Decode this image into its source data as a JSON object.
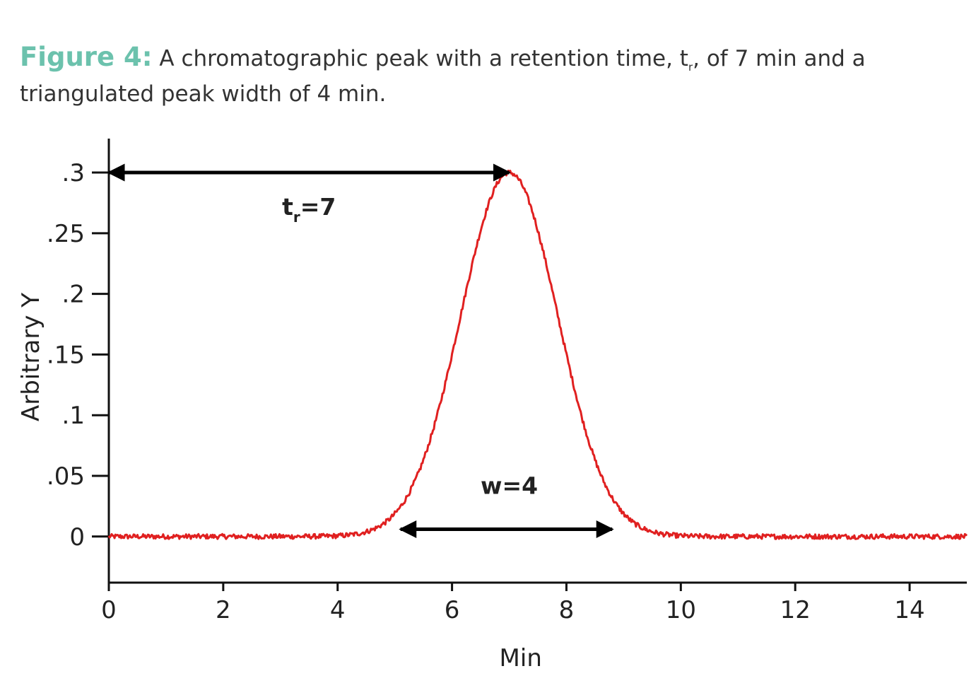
{
  "caption": {
    "label": "Figure 4:",
    "text_part1": "A chromatographic peak with a retention time, t",
    "subscript": "r",
    "text_part2": ", of 7 min and a triangulated peak width of 4 min."
  },
  "colors": {
    "caption_label": "#6cc2ad",
    "trace": "#e02020",
    "axis": "#111111",
    "arrow": "#000000"
  },
  "chart_data": {
    "type": "line",
    "title": "",
    "xlabel": "Min",
    "ylabel": "Arbitrary Y",
    "xlim": [
      0,
      15
    ],
    "ylim": [
      -0.038,
      0.328
    ],
    "x_ticks": [
      0,
      2,
      4,
      6,
      8,
      10,
      12,
      14
    ],
    "x_tick_labels": [
      "0",
      "2",
      "4",
      "6",
      "8",
      "10",
      "12",
      "14"
    ],
    "y_ticks": [
      0,
      0.05,
      0.1,
      0.15,
      0.2,
      0.25,
      0.3
    ],
    "y_tick_labels": [
      "0",
      ".05",
      ".1",
      ".15",
      ".2",
      ".25",
      ".3"
    ],
    "grid": false,
    "series": [
      {
        "name": "chromatographic peak",
        "peak_type": "gaussian",
        "retention_time": 7,
        "peak_height": 0.3,
        "sigma": 0.85,
        "baseline": 0,
        "noise_amplitude": 0.002,
        "x_start": 0,
        "x_end": 15
      }
    ],
    "annotations": [
      {
        "name": "retention-time",
        "type": "double-arrow",
        "x_from": 0,
        "x_to": 7,
        "y": 0.3,
        "label_main": "t",
        "label_sub": "r",
        "label_rest": "=7",
        "label_x": 3.5,
        "label_y": 0.265
      },
      {
        "name": "peak-width",
        "type": "double-arrow",
        "x_from": 5.1,
        "x_to": 8.8,
        "y": 0.006,
        "label": "w=4",
        "label_x": 7.0,
        "label_y": 0.035
      }
    ]
  }
}
